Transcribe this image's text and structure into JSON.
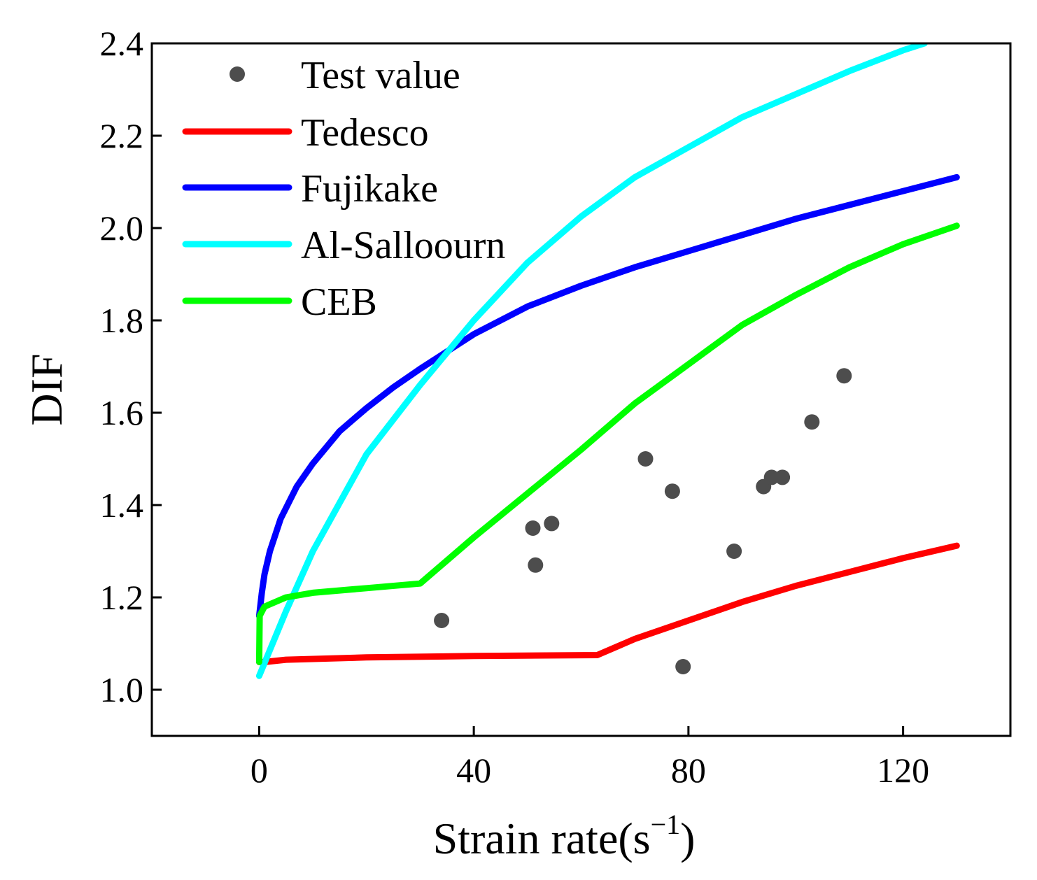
{
  "chart_data": {
    "type": "line",
    "xlabel": "Strain rate(s",
    "xlabel_superscript": "−1",
    "xlabel_suffix": ")",
    "ylabel": "DIF",
    "xlim": [
      -20,
      140
    ],
    "ylim": [
      0.9,
      2.4
    ],
    "xticks": [
      "0",
      "40",
      "80",
      "120"
    ],
    "xtick_values": [
      0,
      40,
      80,
      120
    ],
    "yticks": [
      "1.0",
      "1.2",
      "1.4",
      "1.6",
      "1.8",
      "2.0",
      "2.2",
      "2.4"
    ],
    "ytick_values": [
      1.0,
      1.2,
      1.4,
      1.6,
      1.8,
      2.0,
      2.2,
      2.4
    ],
    "grid": false,
    "legend_position": "top-left",
    "scatter": {
      "name": "Test value",
      "color": "#4d4d4d",
      "points": [
        {
          "x": 34,
          "y": 1.15
        },
        {
          "x": 51,
          "y": 1.35
        },
        {
          "x": 51.5,
          "y": 1.27
        },
        {
          "x": 54.5,
          "y": 1.36
        },
        {
          "x": 72,
          "y": 1.5
        },
        {
          "x": 77,
          "y": 1.43
        },
        {
          "x": 79,
          "y": 1.05
        },
        {
          "x": 88.5,
          "y": 1.3
        },
        {
          "x": 94,
          "y": 1.44
        },
        {
          "x": 95.5,
          "y": 1.46
        },
        {
          "x": 97.5,
          "y": 1.46
        },
        {
          "x": 103,
          "y": 1.58
        },
        {
          "x": 109,
          "y": 1.68
        }
      ]
    },
    "series": [
      {
        "name": "Tedesco",
        "color": "#ff0000",
        "points": [
          [
            0,
            1.06
          ],
          [
            1,
            1.06
          ],
          [
            5,
            1.065
          ],
          [
            20,
            1.07
          ],
          [
            40,
            1.073
          ],
          [
            63,
            1.075
          ],
          [
            70,
            1.11
          ],
          [
            80,
            1.15
          ],
          [
            90,
            1.19
          ],
          [
            100,
            1.225
          ],
          [
            110,
            1.255
          ],
          [
            120,
            1.285
          ],
          [
            130,
            1.312
          ]
        ]
      },
      {
        "name": "Fujikake",
        "color": "#0000ff",
        "points": [
          [
            0,
            1.16
          ],
          [
            0.5,
            1.21
          ],
          [
            1,
            1.25
          ],
          [
            2,
            1.3
          ],
          [
            4,
            1.37
          ],
          [
            7,
            1.44
          ],
          [
            10,
            1.49
          ],
          [
            15,
            1.56
          ],
          [
            20,
            1.61
          ],
          [
            25,
            1.655
          ],
          [
            30,
            1.695
          ],
          [
            40,
            1.77
          ],
          [
            50,
            1.83
          ],
          [
            60,
            1.875
          ],
          [
            70,
            1.915
          ],
          [
            80,
            1.95
          ],
          [
            90,
            1.985
          ],
          [
            100,
            2.02
          ],
          [
            110,
            2.05
          ],
          [
            120,
            2.08
          ],
          [
            130,
            2.11
          ]
        ]
      },
      {
        "name": "Al-Salloourn",
        "color": "#00ffff",
        "points": [
          [
            0,
            1.03
          ],
          [
            5,
            1.17
          ],
          [
            10,
            1.3
          ],
          [
            20,
            1.51
          ],
          [
            30,
            1.66
          ],
          [
            40,
            1.8
          ],
          [
            50,
            1.925
          ],
          [
            60,
            2.025
          ],
          [
            70,
            2.11
          ],
          [
            80,
            2.175
          ],
          [
            90,
            2.24
          ],
          [
            100,
            2.29
          ],
          [
            110,
            2.34
          ],
          [
            120,
            2.385
          ],
          [
            124,
            2.4
          ]
        ]
      },
      {
        "name": "CEB",
        "color": "#00ff00",
        "points": [
          [
            0,
            1.06
          ],
          [
            0.1,
            1.16
          ],
          [
            1,
            1.18
          ],
          [
            5,
            1.2
          ],
          [
            10,
            1.21
          ],
          [
            20,
            1.22
          ],
          [
            30,
            1.23
          ],
          [
            35,
            1.28
          ],
          [
            40,
            1.33
          ],
          [
            50,
            1.425
          ],
          [
            60,
            1.52
          ],
          [
            70,
            1.62
          ],
          [
            80,
            1.705
          ],
          [
            90,
            1.79
          ],
          [
            100,
            1.855
          ],
          [
            110,
            1.915
          ],
          [
            120,
            1.965
          ],
          [
            130,
            2.005
          ]
        ]
      }
    ],
    "legend": [
      "Test value",
      "Tedesco",
      "Fujikake",
      "Al-Salloourn",
      "CEB"
    ]
  }
}
